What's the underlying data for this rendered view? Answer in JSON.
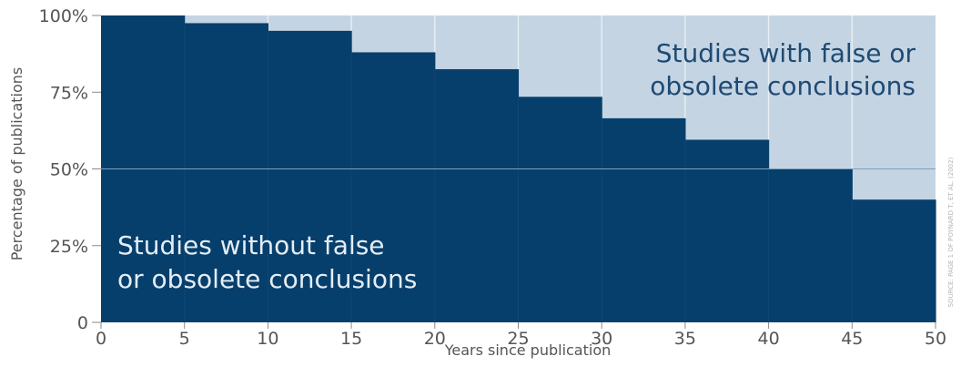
{
  "chart_data": {
    "type": "area",
    "step": true,
    "xlabel": "Years since publication",
    "ylabel": "Percentage of publications",
    "xlim": [
      0,
      50
    ],
    "ylim": [
      0,
      100
    ],
    "x_ticks": [
      "0",
      "5",
      "10",
      "15",
      "20",
      "25",
      "30",
      "35",
      "40",
      "45",
      "50"
    ],
    "y_ticks": [
      "0",
      "25%",
      "50%",
      "75%",
      "100%"
    ],
    "x": [
      0,
      5,
      10,
      15,
      20,
      25,
      30,
      35,
      40,
      45
    ],
    "series": [
      {
        "name": "Studies without false or obsolete conclusions",
        "values": [
          100,
          97.5,
          95,
          88,
          82.5,
          73.5,
          66.5,
          59.5,
          50,
          40
        ]
      },
      {
        "name": "Studies with false or obsolete conclusions",
        "values": [
          0,
          2.5,
          5,
          12,
          17.5,
          26.5,
          33.5,
          40.5,
          50,
          60
        ]
      }
    ],
    "annotations": {
      "false_line1": "Studies with false or",
      "false_line2": "obsolete conclusions",
      "true_line1": "Studies without false",
      "true_line2": "or obsolete conclusions"
    },
    "source_note": "SOURCE: PAGE 1 OF POYNARD T, ET AL. (2002)",
    "colors": {
      "without": "#073f6c",
      "with": "#c4d4e3",
      "grid": "#e6edf3"
    },
    "grid": true
  }
}
